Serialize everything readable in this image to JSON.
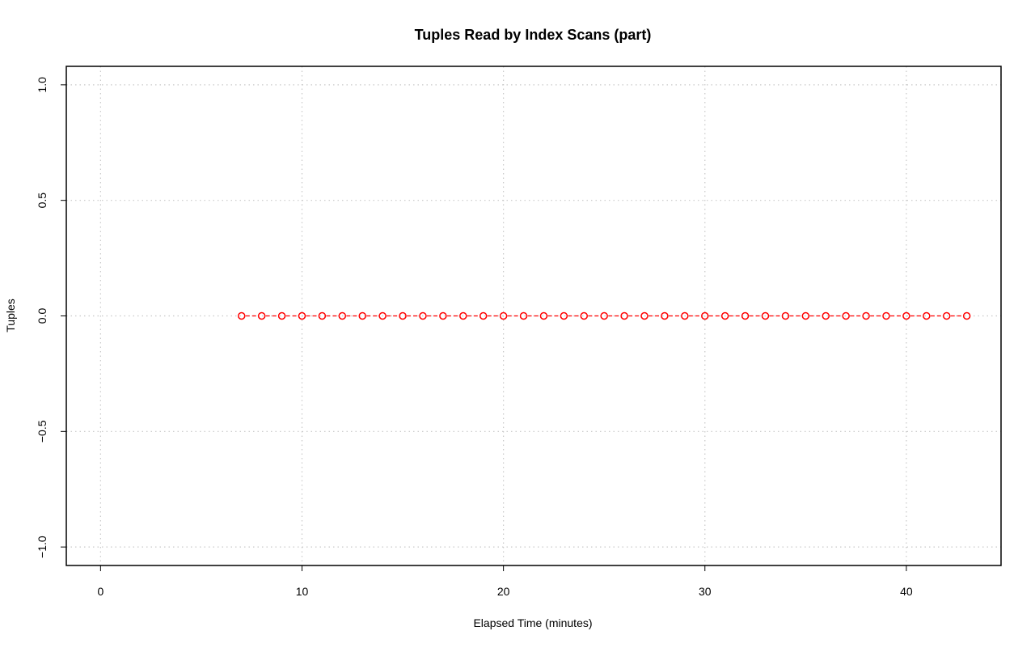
{
  "chart_data": {
    "type": "line",
    "title": "Tuples Read by Index Scans (part)",
    "xlabel": "Elapsed Time (minutes)",
    "ylabel": "Tuples",
    "xlim": [
      -1.7,
      44.7
    ],
    "ylim": [
      -1.08,
      1.08
    ],
    "x_ticks": [
      0,
      10,
      20,
      30,
      40
    ],
    "y_ticks": [
      -1.0,
      -0.5,
      0.0,
      0.5,
      1.0
    ],
    "x_tick_labels": [
      "0",
      "10",
      "20",
      "30",
      "40"
    ],
    "y_tick_labels": [
      "−1.0",
      "−0.5",
      "0.0",
      "0.5",
      "1.0"
    ],
    "grid": true,
    "series": [
      {
        "color": "#ff0000",
        "marker": "open-circle",
        "line_style": "dashed",
        "x": [
          7,
          8,
          9,
          10,
          11,
          12,
          13,
          14,
          15,
          16,
          17,
          18,
          19,
          20,
          21,
          22,
          23,
          24,
          25,
          26,
          27,
          28,
          29,
          30,
          31,
          32,
          33,
          34,
          35,
          36,
          37,
          38,
          39,
          40,
          41,
          42,
          43
        ],
        "y": [
          0,
          0,
          0,
          0,
          0,
          0,
          0,
          0,
          0,
          0,
          0,
          0,
          0,
          0,
          0,
          0,
          0,
          0,
          0,
          0,
          0,
          0,
          0,
          0,
          0,
          0,
          0,
          0,
          0,
          0,
          0,
          0,
          0,
          0,
          0,
          0,
          0
        ]
      }
    ]
  }
}
